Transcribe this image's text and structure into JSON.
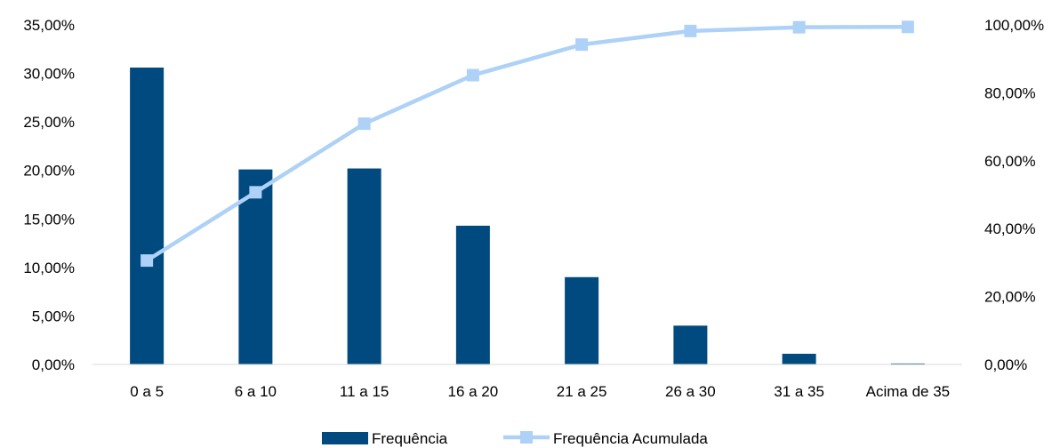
{
  "chart_data": {
    "type": "bar",
    "categories": [
      "0 a 5",
      "6 a 10",
      "11 a 15",
      "16 a 20",
      "21 a 25",
      "26 a 30",
      "31 a 35",
      "Acima de 35"
    ],
    "series": [
      {
        "name": "Frequência",
        "type": "bar",
        "axis": "left",
        "color": "#004a80",
        "values": [
          30.6,
          20.1,
          20.2,
          14.3,
          9.0,
          4.0,
          1.1,
          0.1
        ]
      },
      {
        "name": "Frequência Acumulada",
        "type": "line",
        "axis": "right",
        "color": "#aed1f7",
        "values": [
          30.6,
          50.7,
          70.9,
          85.2,
          94.2,
          98.2,
          99.3,
          99.4
        ]
      }
    ],
    "ylim_left": [
      0,
      35
    ],
    "yticks_left": [
      "0,00%",
      "5,00%",
      "10,00%",
      "15,00%",
      "20,00%",
      "25,00%",
      "30,00%",
      "35,00%"
    ],
    "ylim_right": [
      0,
      100
    ],
    "yticks_right": [
      "0,00%",
      "20,00%",
      "40,00%",
      "60,00%",
      "80,00%",
      "100,00%"
    ],
    "legend": {
      "position": "bottom",
      "items": [
        "Frequência",
        "Frequência Acumulada"
      ]
    },
    "grid": false
  }
}
